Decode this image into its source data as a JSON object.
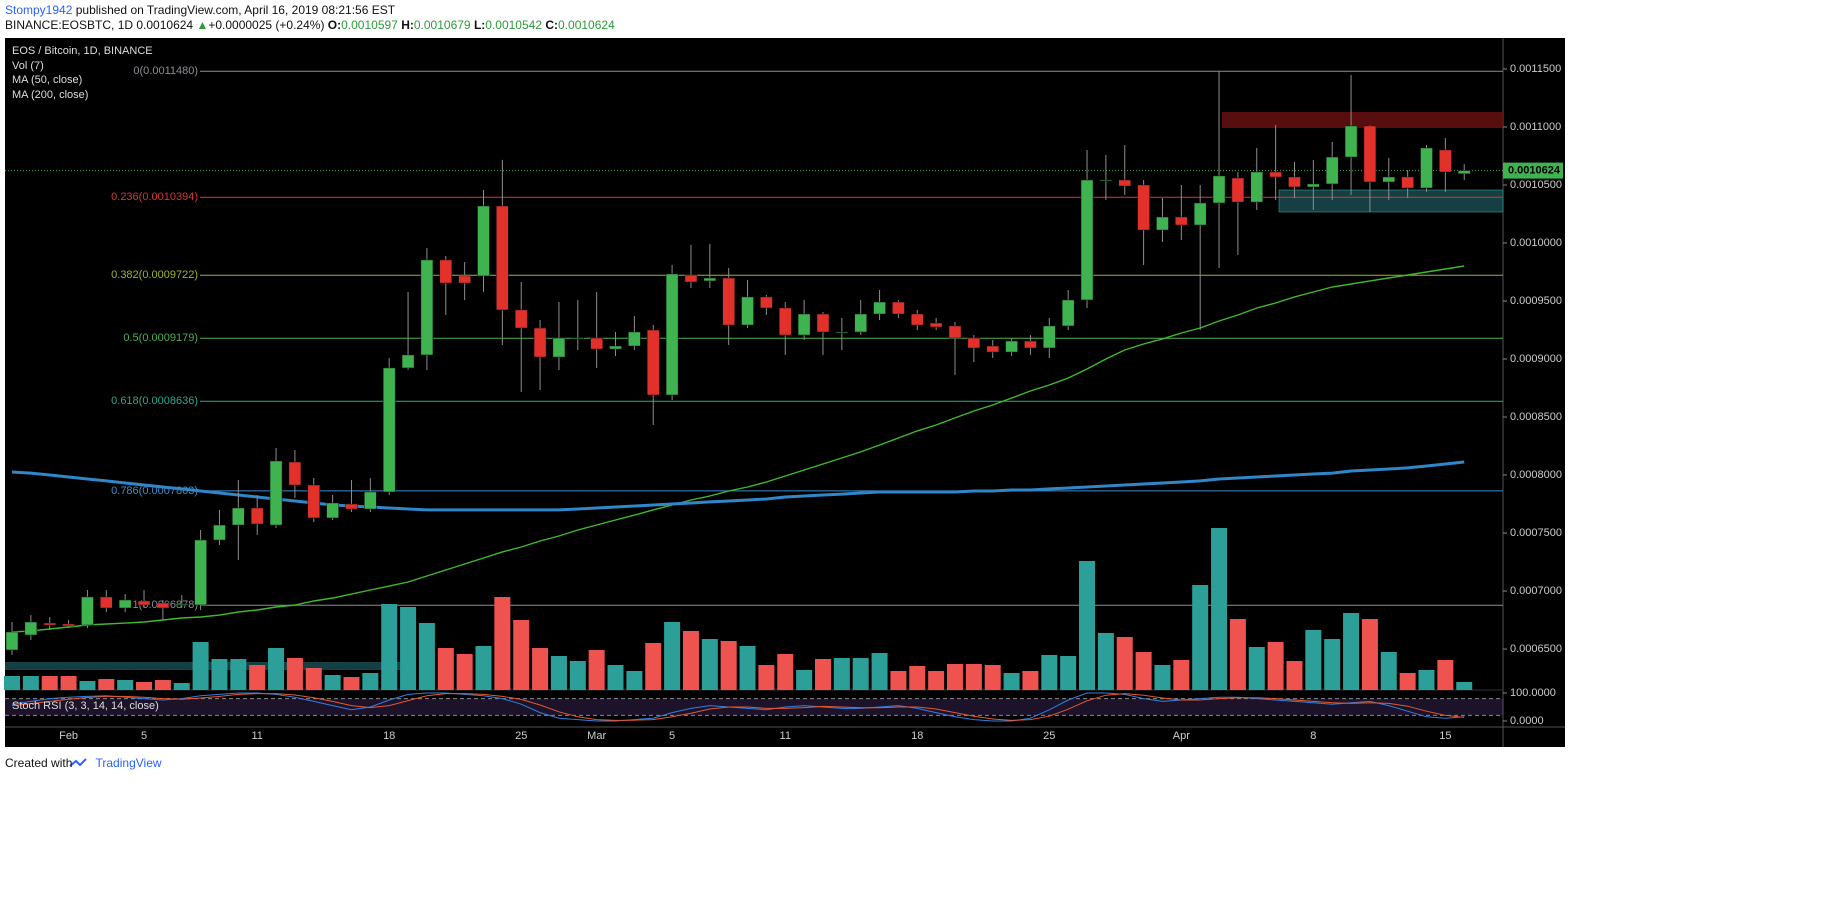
{
  "header": {
    "author": "Stompy1942",
    "published": "published on TradingView.com, April 16, 2019 08:21:56 EST",
    "symbol": "BINANCE:EOSBTC, 1D",
    "change_arrow": "▲",
    "change": "+0.0000025 (+0.24%)",
    "o": "O:",
    "h": "H:",
    "l": "L:",
    "c": "C:"
  },
  "footer": {
    "created": "Created with",
    "brand": "TradingView"
  },
  "chart_data": {
    "type": "candlestick",
    "title": "EOS / Bitcoin, 1D, BINANCE",
    "categories": [
      null,
      null,
      null,
      "Feb",
      null,
      null,
      null,
      "5",
      null,
      null,
      null,
      null,
      null,
      "11",
      null,
      null,
      null,
      null,
      null,
      null,
      "18",
      null,
      null,
      null,
      null,
      null,
      null,
      "25",
      null,
      null,
      null,
      "Mar",
      null,
      null,
      null,
      "5",
      null,
      null,
      null,
      null,
      null,
      "11",
      null,
      null,
      null,
      null,
      null,
      null,
      "18",
      null,
      null,
      null,
      null,
      null,
      null,
      "25",
      null,
      null,
      null,
      null,
      null,
      null,
      "Apr",
      null,
      null,
      null,
      null,
      null,
      null,
      "8",
      null,
      null,
      null,
      null,
      null,
      null,
      "15",
      null
    ],
    "open": [
      0.0006492,
      0.0006621,
      0.0006724,
      0.0006716,
      0.0006707,
      0.0006949,
      0.0006854,
      0.0006914,
      0.0006897,
      0.0006888,
      0.000688,
      0.000744,
      0.0007569,
      0.0007716,
      0.0007569,
      0.0008112,
      0.0007914,
      0.000763,
      0.000775,
      0.0007707,
      0.0007854,
      0.0008923,
      0.0009035,
      0.0009854,
      0.0009716,
      0.0009716,
      0.0010319,
      0.0009423,
      0.0009267,
      0.0009017,
      0.0009181,
      0.0009181,
      0.0009086,
      0.0009112,
      0.000925,
      0.000869,
      0.0009724,
      0.0009673,
      0.0009698,
      0.0009293,
      0.0009535,
      0.000944,
      0.0009207,
      0.0009388,
      0.0009233,
      0.0009233,
      0.0009388,
      0.0009491,
      0.0009388,
      0.000931,
      0.0009285,
      0.0009181,
      0.0009112,
      0.000906,
      0.0009155,
      0.0009095,
      0.0009285,
      0.0009509,
      0.0010543,
      0.0010543,
      0.00105,
      0.0010112,
      0.0010224,
      0.0010155,
      0.0010345,
      0.001056,
      0.0010353,
      0.0010612,
      0.0010569,
      0.0010483,
      0.0010509,
      0.0010741,
      0.0011009,
      0.0010526,
      0.0010569,
      0.0010474,
      0.0010802,
      0.0010597
    ],
    "high": [
      0.0006733,
      0.0006793,
      0.0006776,
      0.000675,
      0.0007009,
      0.0007009,
      0.0006974,
      0.0007009,
      0.0006923,
      0.0006966,
      0.0007526,
      0.0007699,
      0.0007957,
      0.0007828,
      0.0008233,
      0.0008216,
      0.0007974,
      0.0007828,
      0.0007957,
      0.0007974,
      0.0009009,
      0.0009578,
      0.0009957,
      0.0009888,
      0.0009836,
      0.0010457,
      0.0010716,
      0.0009664,
      0.0009336,
      0.0009491,
      0.0009509,
      0.0009578,
      0.0009233,
      0.0009371,
      0.0009293,
      0.000981,
      0.0009983,
      0.0009991,
      0.0009785,
      0.0009681,
      0.0009552,
      0.0009491,
      0.0009509,
      0.0009405,
      0.0009354,
      0.0009509,
      0.0009595,
      0.0009509,
      0.0009423,
      0.0009354,
      0.0009319,
      0.0009207,
      0.0009164,
      0.0009181,
      0.0009207,
      0.0009354,
      0.0009595,
      0.0010802,
      0.0010759,
      0.0010845,
      0.0010543,
      0.0010388,
      0.00105,
      0.00105,
      0.001148,
      0.0010612,
      0.0010819,
      0.0011017,
      0.0010698,
      0.0010716,
      0.0010871,
      0.0011448,
      0.0011017,
      0.0010733,
      0.0010629,
      0.0010845,
      0.0010905,
      0.0010679
    ],
    "low": [
      0.0006449,
      0.0006578,
      0.0006664,
      0.0006681,
      0.0006681,
      0.0006819,
      0.0006819,
      0.0006854,
      0.000675,
      0.0006854,
      0.0006837,
      0.0007397,
      0.0007268,
      0.0007483,
      0.0007543,
      0.0007802,
      0.0007595,
      0.0007612,
      0.0007681,
      0.0007681,
      0.0007828,
      0.0008905,
      0.0008905,
      0.0009379,
      0.0009509,
      0.0009578,
      0.0009121,
      0.0008716,
      0.0008733,
      0.0008905,
      0.0009078,
      0.0008923,
      0.0009026,
      0.0009078,
      0.0008431,
      0.0008647,
      0.0009612,
      0.0009612,
      0.0009121,
      0.0009267,
      0.0009379,
      0.0009035,
      0.0009164,
      0.0009035,
      0.0009078,
      0.0009207,
      0.0009336,
      0.0009354,
      0.000925,
      0.000925,
      0.0008862,
      0.0008974,
      0.0009009,
      0.0009026,
      0.0009035,
      0.0009009,
      0.000925,
      0.000944,
      0.0010371,
      0.0010414,
      0.000981,
      0.0010009,
      0.0010026,
      0.000925,
      0.0009785,
      0.0009897,
      0.0010285,
      0.0010371,
      0.0010388,
      0.0010285,
      0.0010371,
      0.0010414,
      0.0010267,
      0.0010371,
      0.0010388,
      0.001044,
      0.001044,
      0.0010542
    ],
    "close": [
      0.0006647,
      0.0006733,
      0.0006707,
      0.0006699,
      0.0006949,
      0.0006854,
      0.0006923,
      0.000688,
      0.0006854,
      0.0006888,
      0.000744,
      0.0007569,
      0.0007716,
      0.0007578,
      0.0008121,
      0.0007914,
      0.000763,
      0.0007759,
      0.0007707,
      0.0007854,
      0.0008923,
      0.0009035,
      0.0009854,
      0.0009655,
      0.0009655,
      0.0010319,
      0.0009423,
      0.0009267,
      0.0009017,
      0.0009181,
      0.0009181,
      0.0009086,
      0.0009112,
      0.0009233,
      0.000869,
      0.0009733,
      0.0009664,
      0.0009698,
      0.0009293,
      0.0009535,
      0.000944,
      0.0009207,
      0.0009388,
      0.0009233,
      0.0009233,
      0.0009388,
      0.0009491,
      0.0009388,
      0.0009293,
      0.0009276,
      0.0009181,
      0.0009095,
      0.000906,
      0.0009155,
      0.0009095,
      0.0009285,
      0.0009509,
      0.0010543,
      0.0010543,
      0.0010491,
      0.0010112,
      0.0010224,
      0.0010155,
      0.0010345,
      0.0010578,
      0.0010353,
      0.0010612,
      0.0010569,
      0.0010483,
      0.0010509,
      0.0010741,
      0.0011009,
      0.0010526,
      0.0010569,
      0.0010474,
      0.0010819,
      0.0010612,
      0.0010624
    ],
    "up_color": "#3fb34f",
    "down_color": "#e2302b",
    "ylim": [
      0.0006147,
      0.0011767
    ],
    "yticks": [
      {
        "value": 0.00065,
        "label": "0.0006500"
      },
      {
        "value": 0.0007,
        "label": "0.0007000"
      },
      {
        "value": 0.00075,
        "label": "0.0007500"
      },
      {
        "value": 0.0008,
        "label": "0.0008000"
      },
      {
        "value": 0.00085,
        "label": "0.0008500"
      },
      {
        "value": 0.0009,
        "label": "0.0009000"
      },
      {
        "value": 0.00095,
        "label": "0.0009500"
      },
      {
        "value": 0.001,
        "label": "0.0010000"
      },
      {
        "value": 0.00105,
        "label": "0.0010500"
      },
      {
        "value": 0.0011,
        "label": "0.0011000"
      },
      {
        "value": 0.00115,
        "label": "0.0011500"
      }
    ],
    "grid": false,
    "volume": {
      "name": "Vol (7)",
      "up_color": "#2c9f98",
      "down_color": "#ef5350",
      "ylim": [
        0,
        170
      ],
      "values": [
        14,
        14,
        14,
        14,
        9,
        11,
        10,
        8,
        10,
        7,
        48,
        31,
        31,
        25,
        42,
        32,
        22,
        15,
        13,
        17,
        86,
        83,
        67,
        42,
        36,
        44,
        93,
        70,
        42,
        34,
        29,
        40,
        25,
        19,
        47,
        68,
        59,
        51,
        49,
        44,
        25,
        36,
        20,
        31,
        32,
        32,
        37,
        19,
        24,
        19,
        26,
        26,
        25,
        17,
        19,
        35,
        34,
        129,
        57,
        53,
        38,
        25,
        30,
        105,
        162,
        71,
        43,
        48,
        29,
        60,
        51,
        77,
        71,
        38,
        17,
        20,
        30,
        8
      ]
    },
    "ma": [
      {
        "name": "MA (50, close)",
        "color": "#41b82c",
        "values": [
          0.0006647,
          0.0006656,
          0.0006673,
          0.000669,
          0.0006707,
          0.0006716,
          0.0006724,
          0.0006733,
          0.000675,
          0.0006768,
          0.0006776,
          0.0006793,
          0.0006819,
          0.0006837,
          0.0006862,
          0.000688,
          0.0006914,
          0.000694,
          0.0006974,
          0.0007009,
          0.0007043,
          0.0007078,
          0.000713,
          0.0007181,
          0.0007233,
          0.0007285,
          0.0007337,
          0.000738,
          0.0007431,
          0.0007474,
          0.0007526,
          0.0007569,
          0.0007612,
          0.0007655,
          0.0007699,
          0.0007742,
          0.0007785,
          0.0007819,
          0.0007862,
          0.0007897,
          0.000794,
          0.0007992,
          0.0008043,
          0.0008095,
          0.0008147,
          0.0008199,
          0.0008259,
          0.0008319,
          0.000838,
          0.0008431,
          0.0008492,
          0.0008552,
          0.0008604,
          0.0008664,
          0.0008724,
          0.0008776,
          0.0008836,
          0.0008914,
          0.0009,
          0.0009078,
          0.0009129,
          0.0009173,
          0.0009224,
          0.0009267,
          0.0009328,
          0.0009379,
          0.000944,
          0.0009483,
          0.0009535,
          0.0009578,
          0.0009621,
          0.0009647,
          0.0009673,
          0.0009698,
          0.0009724,
          0.000975,
          0.0009776,
          0.0009802
        ]
      },
      {
        "name": "MA (200, close)",
        "color": "#2f86c8",
        "values": [
          0.0008026,
          0.0008017,
          0.0008,
          0.0007983,
          0.0007966,
          0.0007949,
          0.0007931,
          0.0007914,
          0.0007897,
          0.000788,
          0.0007862,
          0.0007845,
          0.0007828,
          0.0007811,
          0.0007793,
          0.0007776,
          0.0007759,
          0.0007742,
          0.0007733,
          0.0007724,
          0.0007716,
          0.0007707,
          0.0007699,
          0.0007699,
          0.0007699,
          0.0007699,
          0.0007699,
          0.0007699,
          0.0007699,
          0.0007699,
          0.0007707,
          0.0007716,
          0.0007724,
          0.0007733,
          0.0007742,
          0.000775,
          0.0007759,
          0.0007768,
          0.0007776,
          0.0007785,
          0.0007793,
          0.0007811,
          0.0007819,
          0.0007828,
          0.0007836,
          0.0007845,
          0.0007854,
          0.0007854,
          0.0007854,
          0.0007854,
          0.0007854,
          0.0007862,
          0.0007862,
          0.0007871,
          0.0007871,
          0.000788,
          0.0007888,
          0.0007897,
          0.0007905,
          0.0007914,
          0.0007923,
          0.0007931,
          0.000794,
          0.0007949,
          0.0007966,
          0.0007974,
          0.0007983,
          0.0007992,
          0.0008,
          0.0008009,
          0.0008017,
          0.0008035,
          0.0008043,
          0.0008052,
          0.0008061,
          0.0008078,
          0.0008095,
          0.0008112
        ]
      }
    ],
    "fib_levels": [
      {
        "label": "0(0.0011480)",
        "value": 0.001148,
        "color": "#8a8d96"
      },
      {
        "label": "0.236(0.0010394)",
        "value": 0.0010394,
        "color": "#d23a32"
      },
      {
        "label": "0.382(0.0009722)",
        "value": 0.0009722,
        "color": "#9bb52c"
      },
      {
        "label": "0.5(0.0009179)",
        "value": 0.0009179,
        "color": "#4caf50"
      },
      {
        "label": "0.618(0.0008636)",
        "value": 0.0008636,
        "color": "#2aa88f"
      },
      {
        "label": "0.786(0.0007863)",
        "value": 0.0007863,
        "color": "#3c8dd0"
      },
      {
        "label": "1(0.0006878)",
        "value": 0.0006878,
        "color": "#8a8d96"
      }
    ],
    "stoch": {
      "name": "Stoch RSI (3, 3, 14, 14, close)",
      "ylim": [
        0,
        100
      ],
      "yticks": [
        {
          "value": 100,
          "label": "100.0000"
        },
        {
          "value": 0,
          "label": "0.0000"
        }
      ],
      "bands": [
        20,
        80
      ],
      "k": {
        "color": "#2f7fe0",
        "values": [
          60,
          70,
          80,
          85,
          88,
          90,
          85,
          80,
          75,
          80,
          90,
          95,
          100,
          100,
          95,
          85,
          70,
          55,
          40,
          50,
          75,
          95,
          100,
          100,
          95,
          90,
          80,
          60,
          30,
          10,
          5,
          0,
          0,
          5,
          10,
          30,
          45,
          55,
          50,
          45,
          40,
          50,
          55,
          50,
          45,
          45,
          50,
          55,
          45,
          30,
          15,
          5,
          0,
          0,
          10,
          40,
          75,
          100,
          100,
          95,
          80,
          70,
          75,
          80,
          85,
          85,
          80,
          75,
          70,
          65,
          60,
          65,
          70,
          55,
          35,
          15,
          10,
          15
        ]
      },
      "d": {
        "color": "#e8572a",
        "values": [
          55,
          62,
          70,
          78,
          84,
          88,
          88,
          85,
          80,
          78,
          82,
          88,
          95,
          98,
          98,
          93,
          83,
          70,
          55,
          48,
          55,
          73,
          90,
          98,
          98,
          95,
          88,
          77,
          57,
          33,
          15,
          5,
          2,
          3,
          5,
          15,
          28,
          43,
          50,
          50,
          45,
          45,
          48,
          52,
          50,
          47,
          47,
          50,
          50,
          43,
          30,
          17,
          7,
          2,
          5,
          17,
          42,
          72,
          92,
          98,
          92,
          82,
          75,
          75,
          80,
          83,
          83,
          80,
          75,
          70,
          65,
          63,
          65,
          63,
          53,
          35,
          20,
          13
        ]
      }
    }
  }
}
